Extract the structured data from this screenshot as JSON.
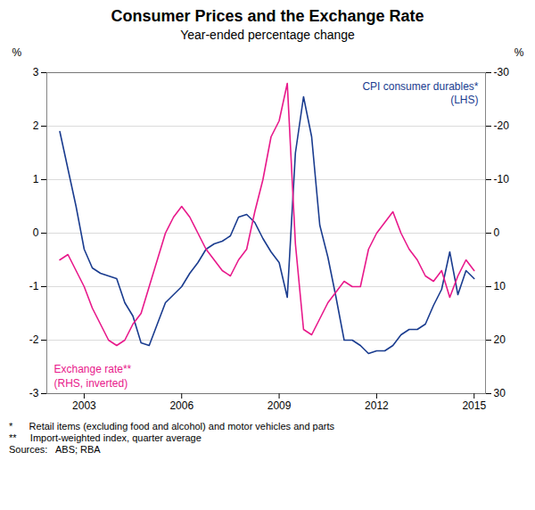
{
  "chart_data": {
    "type": "line",
    "title": "Consumer Prices and the Exchange Rate",
    "subtitle": "Year-ended percentage change",
    "ylabel": "%",
    "y2label": "%",
    "footnotes": [
      "*      Retail items (excluding food and alcohol) and motor vehicles and parts",
      "**     Import-weighted index, quarter average"
    ],
    "sources": "Sources:   ABS; RBA",
    "grid": true,
    "xlim": [
      2001.85,
      2015.35
    ],
    "xticks": [
      2003,
      2006,
      2009,
      2012,
      2015
    ],
    "ylim": [
      -3,
      3
    ],
    "yticks": [
      -3,
      -2,
      -1,
      0,
      1,
      2,
      3
    ],
    "y2lim": [
      30,
      -30
    ],
    "y2ticks": [
      30,
      20,
      10,
      0,
      -10,
      -20,
      -30
    ],
    "x": [
      2002.25,
      2002.5,
      2002.75,
      2003.0,
      2003.25,
      2003.5,
      2003.75,
      2004.0,
      2004.25,
      2004.5,
      2004.75,
      2005.0,
      2005.25,
      2005.5,
      2005.75,
      2006.0,
      2006.25,
      2006.5,
      2006.75,
      2007.0,
      2007.25,
      2007.5,
      2007.75,
      2008.0,
      2008.25,
      2008.5,
      2008.75,
      2009.0,
      2009.25,
      2009.5,
      2009.75,
      2010.0,
      2010.25,
      2010.5,
      2010.75,
      2011.0,
      2011.25,
      2011.5,
      2011.75,
      2012.0,
      2012.25,
      2012.5,
      2012.75,
      2013.0,
      2013.25,
      2013.5,
      2013.75,
      2014.0,
      2014.25,
      2014.5,
      2014.75,
      2015.0
    ],
    "series": [
      {
        "name": "CPI consumer durables*\n(LHS)",
        "color": "#1a3c8f",
        "axis": "y",
        "values": [
          1.9,
          1.2,
          0.5,
          -0.3,
          -0.65,
          -0.75,
          -0.8,
          -0.85,
          -1.3,
          -1.55,
          -2.05,
          -2.1,
          -1.7,
          -1.3,
          -1.15,
          -1.0,
          -0.75,
          -0.55,
          -0.3,
          -0.2,
          -0.15,
          -0.05,
          0.3,
          0.35,
          0.2,
          -0.1,
          -0.35,
          -0.55,
          -1.2,
          1.5,
          2.55,
          1.8,
          0.15,
          -0.45,
          -1.2,
          -2.0,
          -2.0,
          -2.1,
          -2.25,
          -2.2,
          -2.2,
          -2.1,
          -1.9,
          -1.8,
          -1.8,
          -1.7,
          -1.35,
          -1.05,
          -0.35,
          -1.15,
          -0.7,
          -0.85
        ]
      },
      {
        "name": "Exchange rate**\n(RHS, inverted)",
        "color": "#e8198b",
        "axis": "y2",
        "values": [
          5,
          4,
          7,
          10,
          14,
          17,
          20,
          21,
          20,
          17,
          15,
          10,
          5,
          0,
          -3,
          -5,
          -3,
          0,
          3,
          5,
          7,
          8,
          5,
          3,
          -4,
          -10,
          -18,
          -21,
          -28,
          2,
          18,
          19,
          16,
          13,
          11,
          9,
          10,
          10,
          3,
          0,
          -2,
          -4,
          0,
          3,
          5,
          8,
          9,
          7,
          12,
          8,
          5,
          7
        ]
      }
    ]
  }
}
